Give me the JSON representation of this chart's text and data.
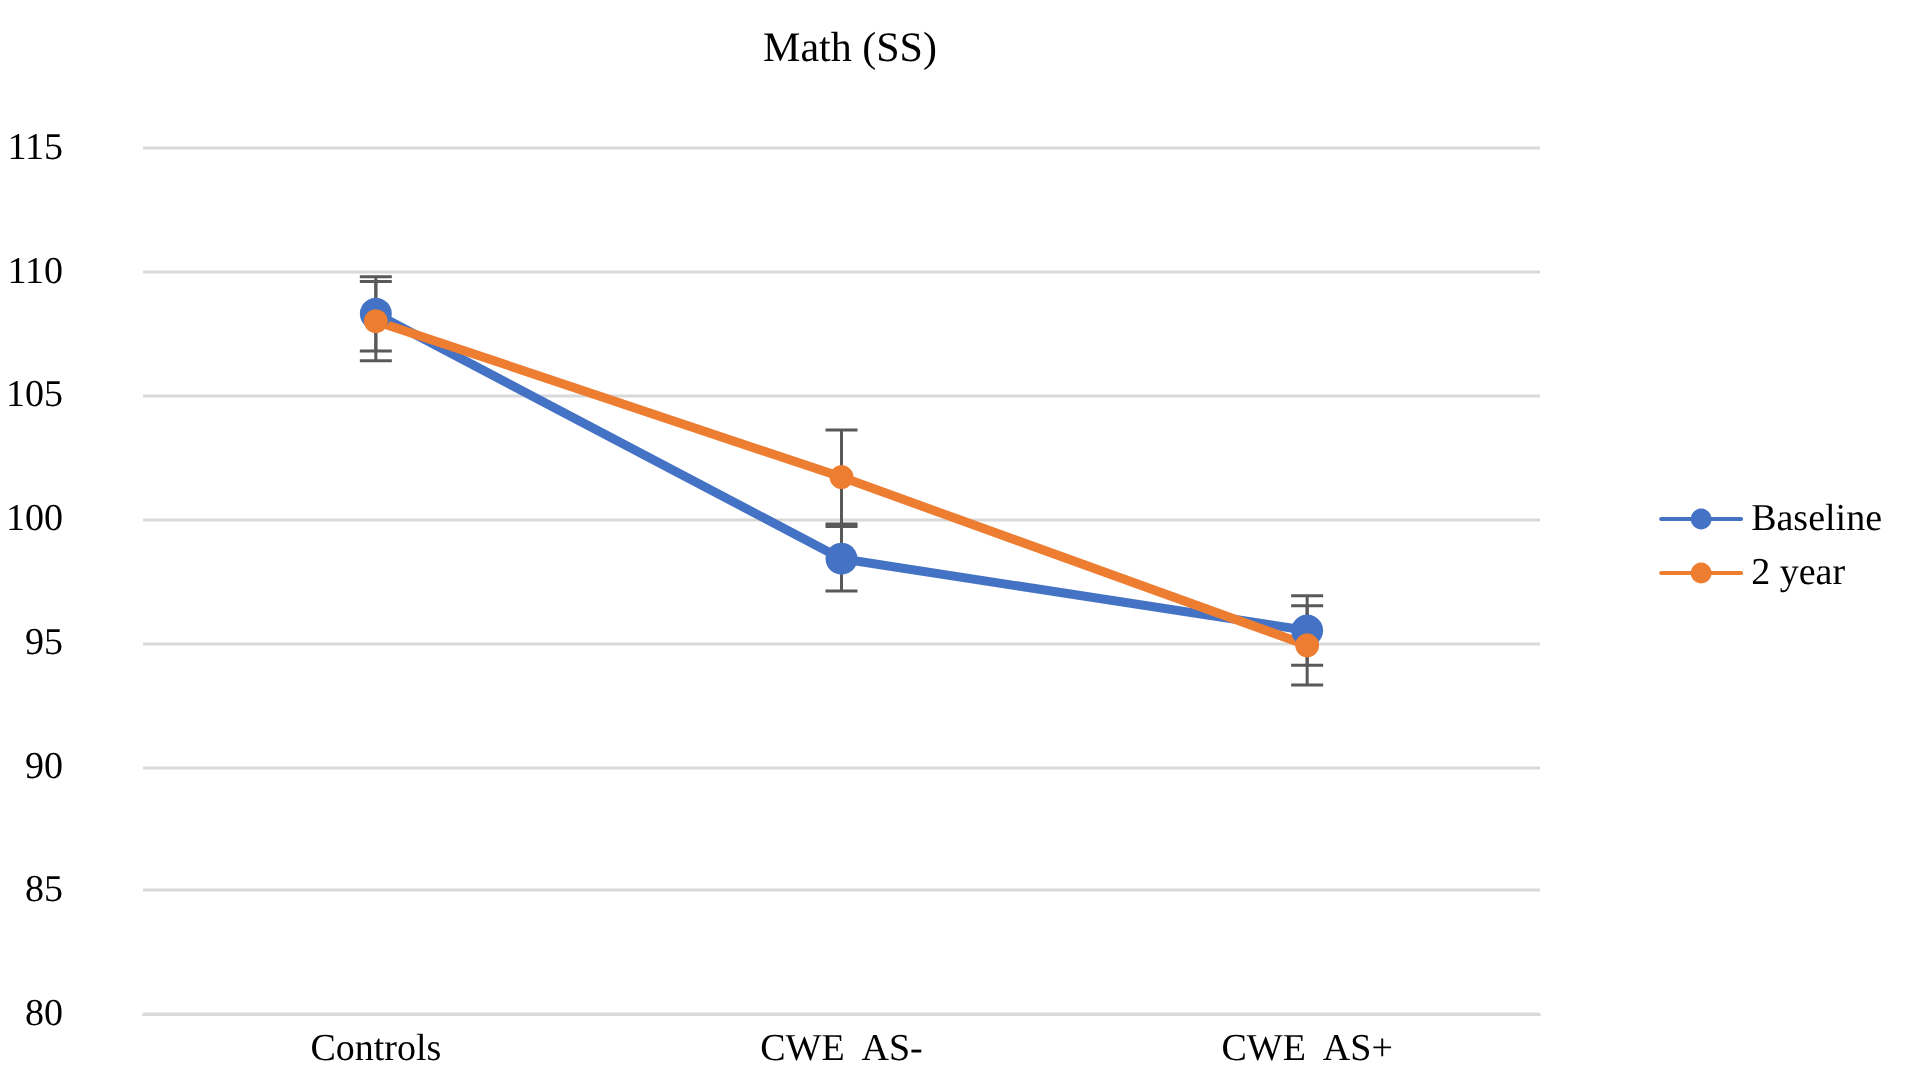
{
  "chart_data": {
    "type": "line",
    "title": "Math (SS)",
    "categories": [
      "Controls",
      "CWE  AS-",
      "CWE  AS+"
    ],
    "series": [
      {
        "name": "Baseline",
        "color": "#4472c4",
        "values": [
          108.3,
          98.4,
          95.5
        ],
        "errors": [
          1.5,
          1.3,
          1.4
        ]
      },
      {
        "name": "2 year",
        "color": "#ed7d31",
        "values": [
          108.0,
          101.7,
          94.9
        ],
        "errors": [
          1.6,
          1.9,
          1.6
        ]
      }
    ],
    "ylim": [
      80,
      115
    ],
    "yticks": [
      80,
      85,
      90,
      95,
      100,
      105,
      110,
      115
    ],
    "grid": "y",
    "legend": "right",
    "marker": "circle",
    "line_style": "solid"
  }
}
